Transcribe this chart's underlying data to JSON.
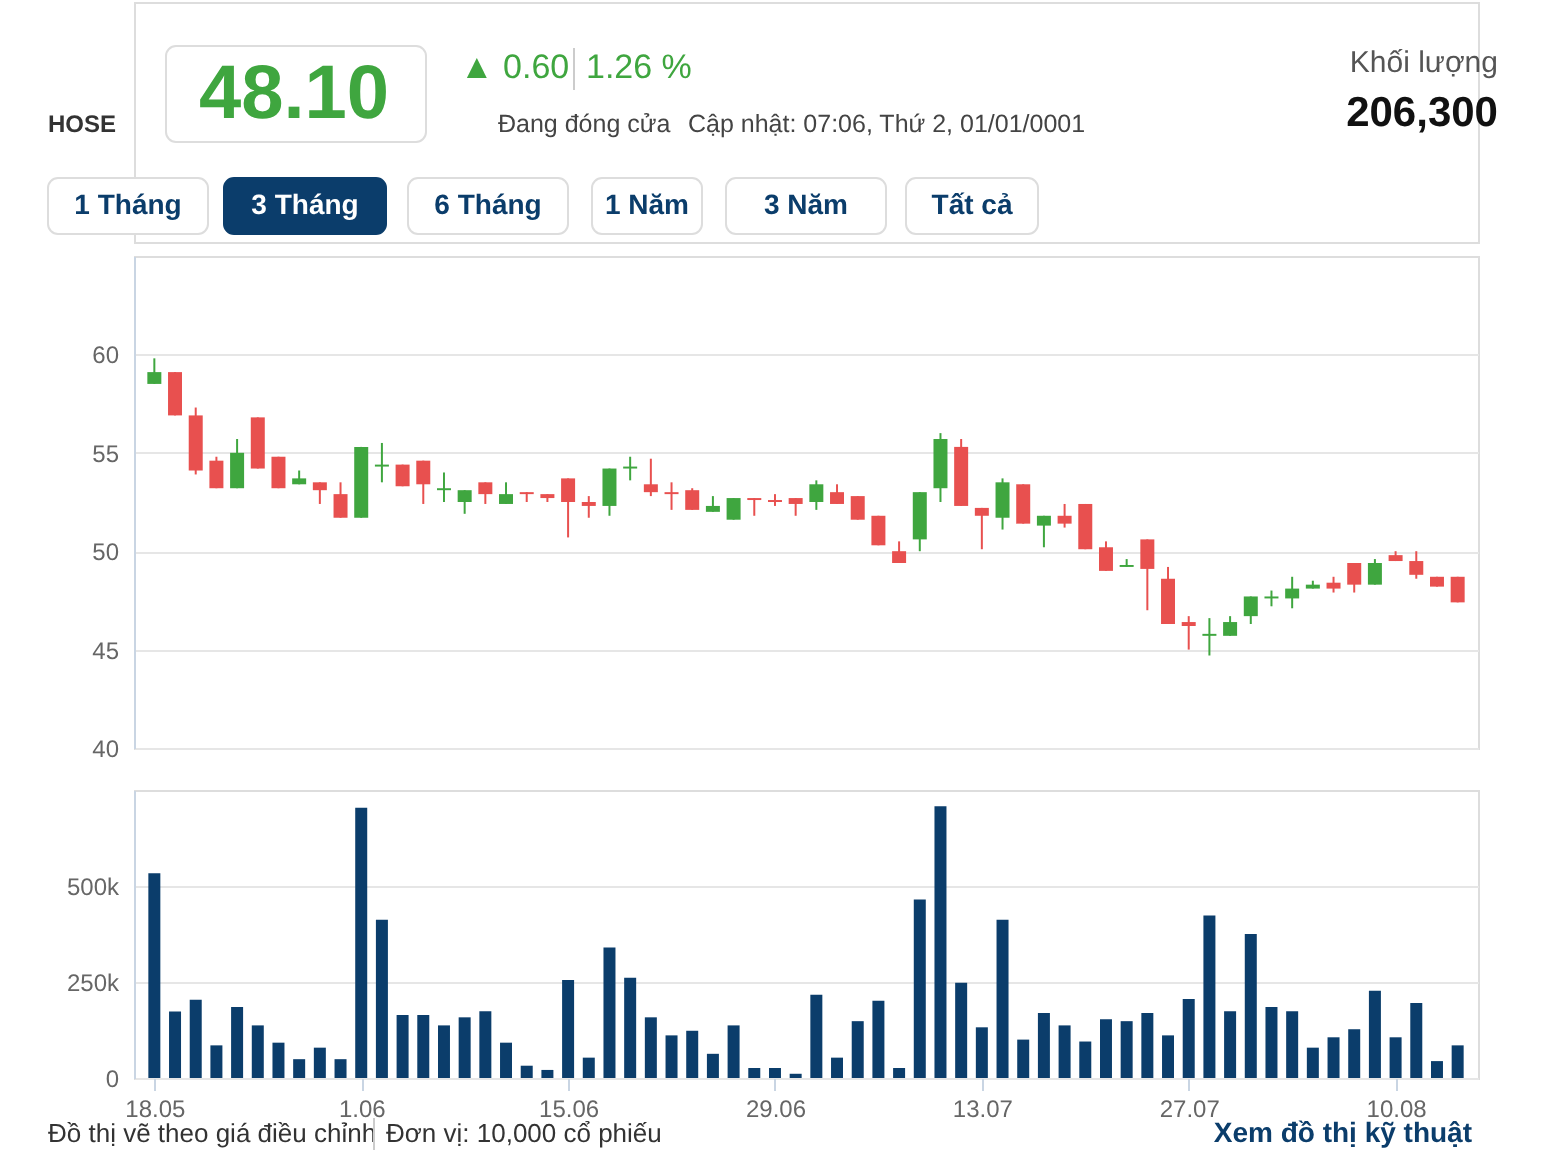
{
  "chart_data": [
    {
      "type": "other",
      "annotations": [
        "HOSE",
        "48.10",
        "▲ 0.60",
        "1.26 %",
        "Đang đóng cửa",
        "Cập nhật: 07:06, Thứ 2, 01/01/0001",
        "Khối lượng",
        "206,300",
        "1 Tháng",
        "3 Tháng",
        "6 Tháng",
        "1 Năm",
        "3 Năm",
        "Tất cả"
      ]
    },
    {
      "type": "candlestick",
      "categories": [
        "18.05",
        null,
        null,
        null,
        null,
        null,
        null,
        null,
        null,
        null,
        "1.06",
        null,
        null,
        null,
        null,
        null,
        null,
        null,
        null,
        null,
        "15.06",
        null,
        null,
        null,
        null,
        null,
        null,
        null,
        null,
        null,
        "29.06",
        null,
        null,
        null,
        null,
        null,
        null,
        null,
        null,
        null,
        "13.07",
        null,
        null,
        null,
        null,
        null,
        null,
        null,
        null,
        null,
        "27.07",
        null,
        null,
        null,
        null,
        null,
        null,
        null,
        null,
        null,
        "10.08",
        null,
        null,
        null
      ],
      "ohlc": [
        [
          58.5,
          59.8,
          58.5,
          59.1
        ],
        [
          59.1,
          59.1,
          56.9,
          56.9
        ],
        [
          56.9,
          57.3,
          53.9,
          54.1
        ],
        [
          54.6,
          54.8,
          53.2,
          53.2
        ],
        [
          53.2,
          55.7,
          53.2,
          55.0
        ],
        [
          56.8,
          56.8,
          54.2,
          54.2
        ],
        [
          54.8,
          54.8,
          53.2,
          53.2
        ],
        [
          53.4,
          54.1,
          53.4,
          53.7
        ],
        [
          53.5,
          53.5,
          52.4,
          53.1
        ],
        [
          52.9,
          53.5,
          51.7,
          51.7
        ],
        [
          51.7,
          55.3,
          51.7,
          55.3
        ],
        [
          54.3,
          55.5,
          53.5,
          54.4
        ],
        [
          54.4,
          54.4,
          53.3,
          53.3
        ],
        [
          54.6,
          54.6,
          52.4,
          53.4
        ],
        [
          53.1,
          54.0,
          52.5,
          53.2
        ],
        [
          52.5,
          53.1,
          51.9,
          53.1
        ],
        [
          53.5,
          53.5,
          52.4,
          52.9
        ],
        [
          52.4,
          53.5,
          52.4,
          52.9
        ],
        [
          53.0,
          53.0,
          52.5,
          52.9
        ],
        [
          52.9,
          52.9,
          52.5,
          52.7
        ],
        [
          53.7,
          53.7,
          50.7,
          52.5
        ],
        [
          52.5,
          52.8,
          51.7,
          52.3
        ],
        [
          52.3,
          54.2,
          51.8,
          54.2
        ],
        [
          54.2,
          54.8,
          53.6,
          54.3
        ],
        [
          53.4,
          54.7,
          52.8,
          53.0
        ],
        [
          53.0,
          53.5,
          52.1,
          52.9
        ],
        [
          53.1,
          53.2,
          52.1,
          52.1
        ],
        [
          52.0,
          52.8,
          52.0,
          52.3
        ],
        [
          51.6,
          52.7,
          51.6,
          52.7
        ],
        [
          52.7,
          52.7,
          51.8,
          52.6
        ],
        [
          52.6,
          52.9,
          52.3,
          52.5
        ],
        [
          52.7,
          52.7,
          51.8,
          52.4
        ],
        [
          52.5,
          53.6,
          52.1,
          53.4
        ],
        [
          53.0,
          53.4,
          52.4,
          52.4
        ],
        [
          52.8,
          52.8,
          51.6,
          51.6
        ],
        [
          51.8,
          51.8,
          50.3,
          50.3
        ],
        [
          50.0,
          50.5,
          49.4,
          49.4
        ],
        [
          50.6,
          53.0,
          50.0,
          53.0
        ],
        [
          53.2,
          56.0,
          52.5,
          55.7
        ],
        [
          55.3,
          55.7,
          52.3,
          52.3
        ],
        [
          52.2,
          52.2,
          50.1,
          51.8
        ],
        [
          51.7,
          53.7,
          51.1,
          53.5
        ],
        [
          53.4,
          53.4,
          51.4,
          51.4
        ],
        [
          51.3,
          51.8,
          50.2,
          51.8
        ],
        [
          51.8,
          52.4,
          51.2,
          51.4
        ],
        [
          52.4,
          52.4,
          50.1,
          50.1
        ],
        [
          50.2,
          50.5,
          49.0,
          49.0
        ],
        [
          49.2,
          49.6,
          49.2,
          49.3
        ],
        [
          50.6,
          50.6,
          47.0,
          49.1
        ],
        [
          48.6,
          49.2,
          46.3,
          46.3
        ],
        [
          46.4,
          46.7,
          45.0,
          46.2
        ],
        [
          45.7,
          46.6,
          44.7,
          45.8
        ],
        [
          45.7,
          46.7,
          45.7,
          46.4
        ],
        [
          46.7,
          47.7,
          46.3,
          47.7
        ],
        [
          47.6,
          48.0,
          47.2,
          47.7
        ],
        [
          47.6,
          48.7,
          47.1,
          48.1
        ],
        [
          48.1,
          48.5,
          48.1,
          48.3
        ],
        [
          48.4,
          48.7,
          47.9,
          48.1
        ],
        [
          49.4,
          49.4,
          47.9,
          48.3
        ],
        [
          48.3,
          49.6,
          48.3,
          49.4
        ],
        [
          49.8,
          50.0,
          49.5,
          49.5
        ],
        [
          49.5,
          50.0,
          48.6,
          48.8
        ],
        [
          48.7,
          48.7,
          48.2,
          48.2
        ],
        [
          48.7,
          48.7,
          47.4,
          47.4
        ]
      ],
      "colors": [
        "#3fa63f",
        "#e8504f",
        "#e8504f",
        "#e8504f",
        "#3fa63f",
        "#e8504f",
        "#e8504f",
        "#3fa63f",
        "#e8504f",
        "#e8504f",
        "#3fa63f",
        "#3fa63f",
        "#e8504f",
        "#e8504f",
        "#3fa63f",
        "#3fa63f",
        "#e8504f",
        "#3fa63f",
        "#e8504f",
        "#e8504f",
        "#e8504f",
        "#e8504f",
        "#3fa63f",
        "#3fa63f",
        "#e8504f",
        "#e8504f",
        "#e8504f",
        "#3fa63f",
        "#3fa63f",
        "#e8504f",
        "#e8504f",
        "#e8504f",
        "#3fa63f",
        "#e8504f",
        "#e8504f",
        "#e8504f",
        "#e8504f",
        "#3fa63f",
        "#3fa63f",
        "#e8504f",
        "#e8504f",
        "#3fa63f",
        "#e8504f",
        "#3fa63f",
        "#e8504f",
        "#e8504f",
        "#e8504f",
        "#3fa63f",
        "#e8504f",
        "#e8504f",
        "#e8504f",
        "#3fa63f",
        "#3fa63f",
        "#3fa63f",
        "#3fa63f",
        "#3fa63f",
        "#3fa63f",
        "#e8504f",
        "#e8504f",
        "#3fa63f",
        "#e8504f",
        "#e8504f",
        "#e8504f",
        "#e8504f"
      ],
      "ylim": [
        40,
        65
      ],
      "yticks": [
        40,
        45,
        50,
        55,
        60
      ],
      "grid": "y",
      "tick_labels": "y"
    },
    {
      "type": "bar",
      "categories": [
        "18.05",
        null,
        null,
        null,
        null,
        null,
        null,
        null,
        null,
        null,
        "1.06",
        null,
        null,
        null,
        null,
        null,
        null,
        null,
        null,
        null,
        "15.06",
        null,
        null,
        null,
        null,
        null,
        null,
        null,
        null,
        null,
        "29.06",
        null,
        null,
        null,
        null,
        null,
        null,
        null,
        null,
        null,
        "13.07",
        null,
        null,
        null,
        null,
        null,
        null,
        null,
        null,
        null,
        "27.07",
        null,
        null,
        null,
        null,
        null,
        null,
        null,
        null,
        null,
        "10.08",
        null,
        null,
        null
      ],
      "values": [
        533000,
        173000,
        204000,
        85000,
        185000,
        137000,
        92000,
        49000,
        79000,
        49000,
        704000,
        412000,
        164000,
        164000,
        137000,
        158000,
        174000,
        92000,
        32000,
        21000,
        255000,
        53000,
        340000,
        261000,
        158000,
        111000,
        123000,
        63000,
        137000,
        26000,
        26000,
        11000,
        217000,
        53000,
        148000,
        201000,
        26000,
        465000,
        708000,
        248000,
        132000,
        412000,
        100000,
        169000,
        137000,
        95000,
        153000,
        148000,
        169000,
        111000,
        206000,
        423000,
        174000,
        375000,
        185000,
        174000,
        79000,
        106000,
        127000,
        227000,
        106000,
        195000,
        44000,
        85000
      ],
      "color": "#0b3d6b",
      "ylim": [
        0,
        750000
      ],
      "yticks": [
        0,
        {
          "value": 250000,
          "label": "250k"
        },
        {
          "value": 500000,
          "label": "500k"
        }
      ],
      "grid": "y",
      "annotations": [
        "Đồ thị vẽ theo giá điều chỉnh",
        "Đơn vị: 10,000 cổ phiếu",
        "Xem đồ thị kỹ thuật"
      ]
    }
  ]
}
